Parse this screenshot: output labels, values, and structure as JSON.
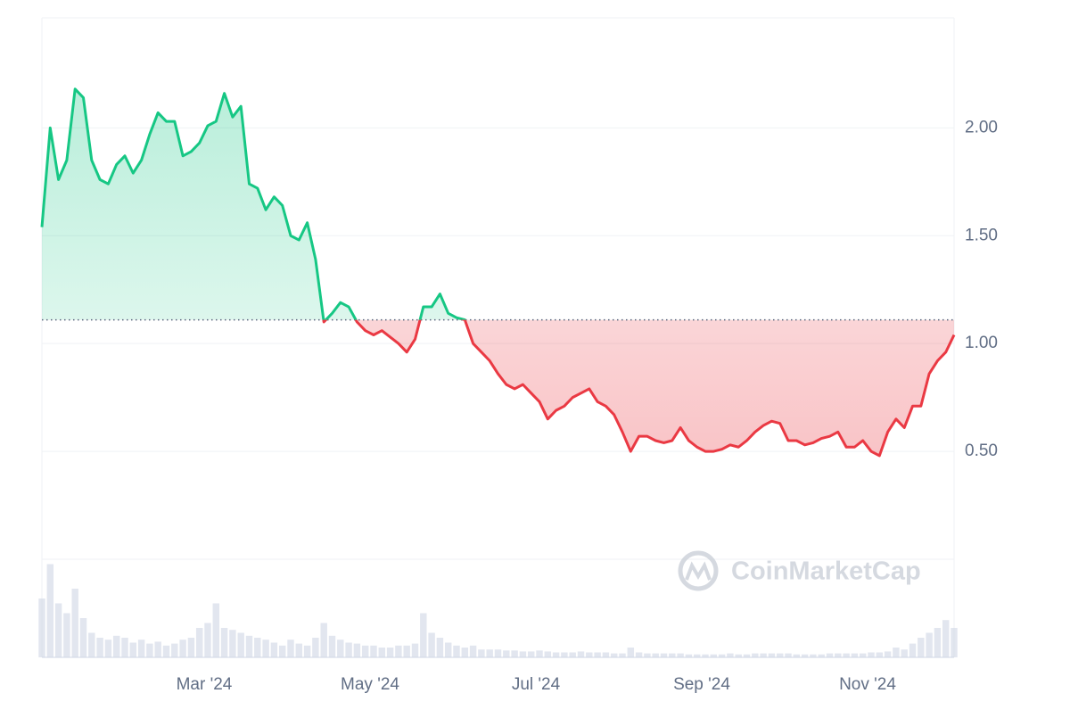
{
  "chart_data": {
    "type": "line",
    "categories": [
      null,
      null,
      null,
      null,
      null,
      null,
      null,
      null,
      null,
      null,
      null,
      null,
      null,
      null,
      null,
      null,
      null,
      null,
      null,
      null,
      "Mar '24",
      null,
      null,
      null,
      null,
      null,
      null,
      null,
      null,
      null,
      null,
      null,
      null,
      null,
      null,
      null,
      null,
      null,
      null,
      null,
      "May '24",
      null,
      null,
      null,
      null,
      null,
      null,
      null,
      null,
      null,
      null,
      null,
      null,
      null,
      null,
      null,
      null,
      null,
      null,
      null,
      "Jul '24",
      null,
      null,
      null,
      null,
      null,
      null,
      null,
      null,
      null,
      null,
      null,
      null,
      null,
      null,
      null,
      null,
      null,
      null,
      null,
      "Sep '24",
      null,
      null,
      null,
      null,
      null,
      null,
      null,
      null,
      null,
      null,
      null,
      null,
      null,
      null,
      null,
      null,
      null,
      null,
      null,
      "Nov '24",
      null,
      null,
      null,
      null,
      null,
      null,
      null,
      null,
      null,
      null
    ],
    "values": [
      1.54,
      2.0,
      1.76,
      1.85,
      2.18,
      2.14,
      1.85,
      1.76,
      1.74,
      1.83,
      1.87,
      1.79,
      1.85,
      1.97,
      2.07,
      2.03,
      2.03,
      1.87,
      1.89,
      1.93,
      2.01,
      2.03,
      2.16,
      2.05,
      2.1,
      1.74,
      1.72,
      1.62,
      1.68,
      1.64,
      1.5,
      1.48,
      1.56,
      1.39,
      1.1,
      1.14,
      1.19,
      1.17,
      1.1,
      1.06,
      1.04,
      1.06,
      1.03,
      1.0,
      0.96,
      1.02,
      1.17,
      1.17,
      1.23,
      1.14,
      1.12,
      1.11,
      1.0,
      0.96,
      0.92,
      0.86,
      0.81,
      0.79,
      0.81,
      0.77,
      0.73,
      0.65,
      0.69,
      0.71,
      0.75,
      0.77,
      0.79,
      0.73,
      0.71,
      0.67,
      0.59,
      0.5,
      0.57,
      0.57,
      0.55,
      0.54,
      0.55,
      0.61,
      0.55,
      0.52,
      0.5,
      0.5,
      0.51,
      0.53,
      0.52,
      0.55,
      0.59,
      0.62,
      0.64,
      0.63,
      0.55,
      0.55,
      0.53,
      0.54,
      0.56,
      0.57,
      0.59,
      0.52,
      0.52,
      0.55,
      0.5,
      0.48,
      0.59,
      0.65,
      0.61,
      0.71,
      0.71,
      0.86,
      0.92,
      0.96,
      1.04
    ],
    "baseline": 1.11,
    "up_color": "#16c784",
    "down_color": "#ea3943",
    "ylim": [
      0,
      2.51
    ],
    "yticks": [
      {
        "value": 0.5,
        "label": "0.50"
      },
      {
        "value": 1,
        "label": "1.00"
      },
      {
        "value": 1.5,
        "label": "1.50"
      },
      {
        "value": 2,
        "label": "2.00"
      }
    ],
    "grid": true,
    "volume": [
      60,
      95,
      55,
      45,
      70,
      40,
      25,
      20,
      18,
      22,
      20,
      15,
      18,
      14,
      16,
      12,
      14,
      18,
      20,
      30,
      35,
      55,
      30,
      28,
      25,
      22,
      20,
      18,
      15,
      12,
      18,
      14,
      12,
      20,
      35,
      22,
      18,
      15,
      14,
      12,
      12,
      10,
      10,
      12,
      12,
      14,
      45,
      25,
      20,
      15,
      12,
      10,
      12,
      8,
      8,
      8,
      7,
      7,
      6,
      6,
      7,
      6,
      5,
      5,
      5,
      6,
      5,
      5,
      5,
      4,
      4,
      10,
      5,
      4,
      4,
      4,
      4,
      4,
      3,
      3,
      3,
      3,
      3,
      4,
      3,
      3,
      4,
      4,
      4,
      4,
      4,
      3,
      3,
      3,
      3,
      4,
      4,
      4,
      4,
      4,
      5,
      5,
      6,
      10,
      8,
      14,
      20,
      25,
      30,
      38,
      30
    ],
    "volume_lim": [
      0,
      100
    ],
    "volume_color": "#cfd6e4",
    "watermark": "CoinMarketCap"
  }
}
